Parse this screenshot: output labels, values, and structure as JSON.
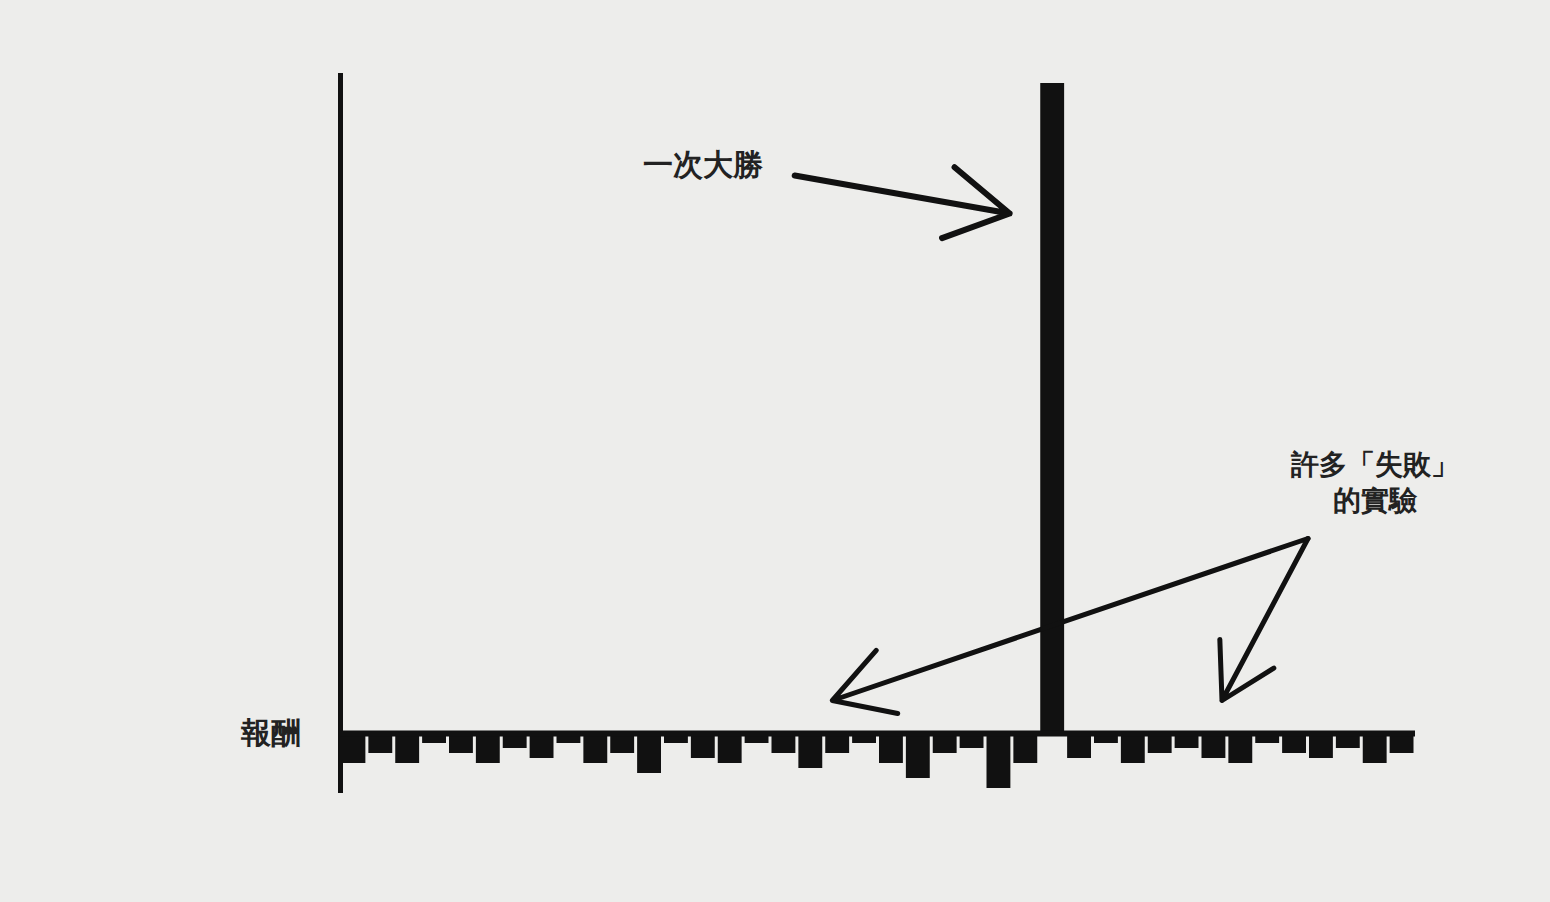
{
  "chart_data": {
    "type": "bar",
    "y_label": "報酬",
    "categories": [
      null,
      null,
      null,
      null,
      null,
      null,
      null,
      null,
      null,
      null,
      null,
      null,
      null,
      null,
      null,
      null,
      null,
      null,
      null,
      null,
      null,
      null,
      null,
      null,
      null,
      null,
      null,
      null,
      null,
      null,
      null,
      null,
      null,
      null,
      null,
      null,
      null,
      null,
      null,
      null
    ],
    "values": [
      -3,
      -2,
      -3,
      -1,
      -2,
      -3,
      -1.5,
      -2.5,
      -1,
      -3,
      -2,
      -4,
      -1,
      -2.5,
      -3,
      -1,
      -2,
      -3.5,
      -2,
      -1,
      -3,
      -4.5,
      -2,
      -1.5,
      -5.5,
      -3,
      65,
      -2.5,
      -1,
      -3,
      -2,
      -1.5,
      -2.5,
      -3,
      -1,
      -2,
      -2.5,
      -1.5,
      -3,
      -2
    ],
    "color": "#111111",
    "ylim": [
      -6,
      66
    ],
    "yticks": [],
    "tick_labels": false,
    "grid": false,
    "annotations": [
      {
        "text": "一次大勝"
      },
      {
        "text": "許多「失敗」\n的實驗"
      }
    ]
  }
}
